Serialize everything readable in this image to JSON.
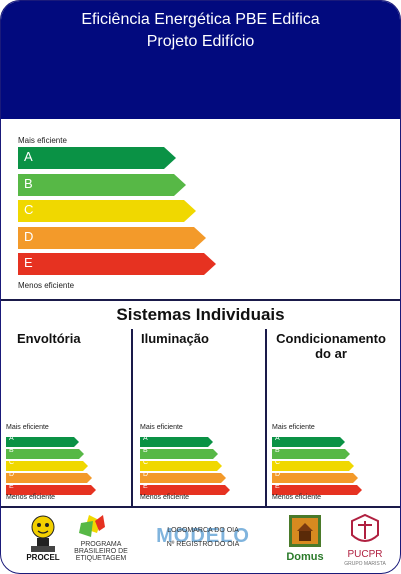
{
  "header": {
    "title_line1": "Eficiência Energética PBE Edifica",
    "title_line2": "Projeto Edifício"
  },
  "colors": {
    "header_bg": "#020a7e",
    "A": "#0a9245",
    "B": "#57b846",
    "C": "#f0d800",
    "D": "#f39a2a",
    "E": "#e63221"
  },
  "main_scale": {
    "top_label": "Mais eficiente",
    "bottom_label": "Menos eficiente",
    "levels": [
      "A",
      "B",
      "C",
      "D",
      "E"
    ]
  },
  "systems": {
    "title": "Sistemas Individuais",
    "sections": [
      {
        "name": "Envoltória",
        "top_label": "Mais eficiente",
        "bottom_label": "Menos eficiente",
        "levels": [
          "A",
          "B",
          "C",
          "D",
          "E"
        ]
      },
      {
        "name": "Iluminação",
        "top_label": "Mais eficiente",
        "bottom_label": "Menos eficiente",
        "levels": [
          "A",
          "B",
          "C",
          "D",
          "E"
        ]
      },
      {
        "name": "Condicionamento do ar",
        "top_label": "Mais eficiente",
        "bottom_label": "Menos eficiente",
        "levels": [
          "A",
          "B",
          "C",
          "D",
          "E"
        ]
      }
    ]
  },
  "footer": {
    "procel": "PROCEL",
    "pbe_line1": "PROGRAMA",
    "pbe_line2": "BRASILEIRO DE",
    "pbe_line3": "ETIQUETAGEM",
    "oia_line1": "LOGOMARCA DO OIA",
    "oia_line2": "Nº REGISTRO DO OIA",
    "watermark": "MODELO",
    "domus": "Domus",
    "pucpr": "PUCPR",
    "pucpr_sub": "GRUPO MARISTA"
  }
}
